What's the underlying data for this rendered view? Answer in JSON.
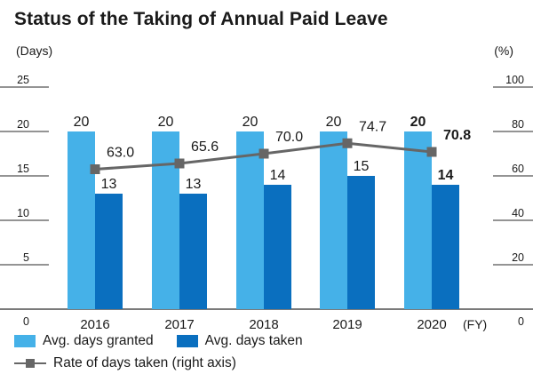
{
  "title": "Status of the Taking of Annual Paid Leave",
  "colors": {
    "granted": "#45b1e8",
    "taken": "#0a6fbf",
    "rate": "#666666",
    "grid": "#2a2a2a",
    "text": "#1a1a1a"
  },
  "legend": {
    "granted": "Avg. days granted",
    "taken": "Avg. days taken",
    "rate": "Rate of days taken (right axis)"
  },
  "chart_data": {
    "type": "bar",
    "title": "Status of the Taking of Annual Paid Leave",
    "categories": [
      "2016",
      "2017",
      "2018",
      "2019",
      "2020"
    ],
    "x_unit": "(FY)",
    "left_axis": {
      "label": "(Days)",
      "ylim": [
        0,
        25
      ],
      "ticks": [
        0,
        5,
        10,
        15,
        20,
        25
      ]
    },
    "right_axis": {
      "label": "(%)",
      "ylim": [
        0,
        100
      ],
      "ticks": [
        0,
        20,
        40,
        60,
        80,
        100
      ]
    },
    "series": [
      {
        "name": "Avg. days granted",
        "type": "bar",
        "axis": "left",
        "values": [
          20,
          20,
          20,
          20,
          20
        ],
        "labels": [
          "20",
          "20",
          "20",
          "20",
          "20"
        ]
      },
      {
        "name": "Avg. days taken",
        "type": "bar",
        "axis": "left",
        "values": [
          13,
          13,
          14,
          15,
          14
        ],
        "labels": [
          "13",
          "13",
          "14",
          "15",
          "14"
        ]
      },
      {
        "name": "Rate of days taken (right axis)",
        "type": "line",
        "axis": "right",
        "values": [
          63.0,
          65.6,
          70.0,
          74.7,
          70.8
        ],
        "labels": [
          "63.0",
          "65.6",
          "70.0",
          "74.7",
          "70.8"
        ]
      }
    ],
    "highlight_category": "2020",
    "grid": true,
    "legend_position": "bottom"
  }
}
